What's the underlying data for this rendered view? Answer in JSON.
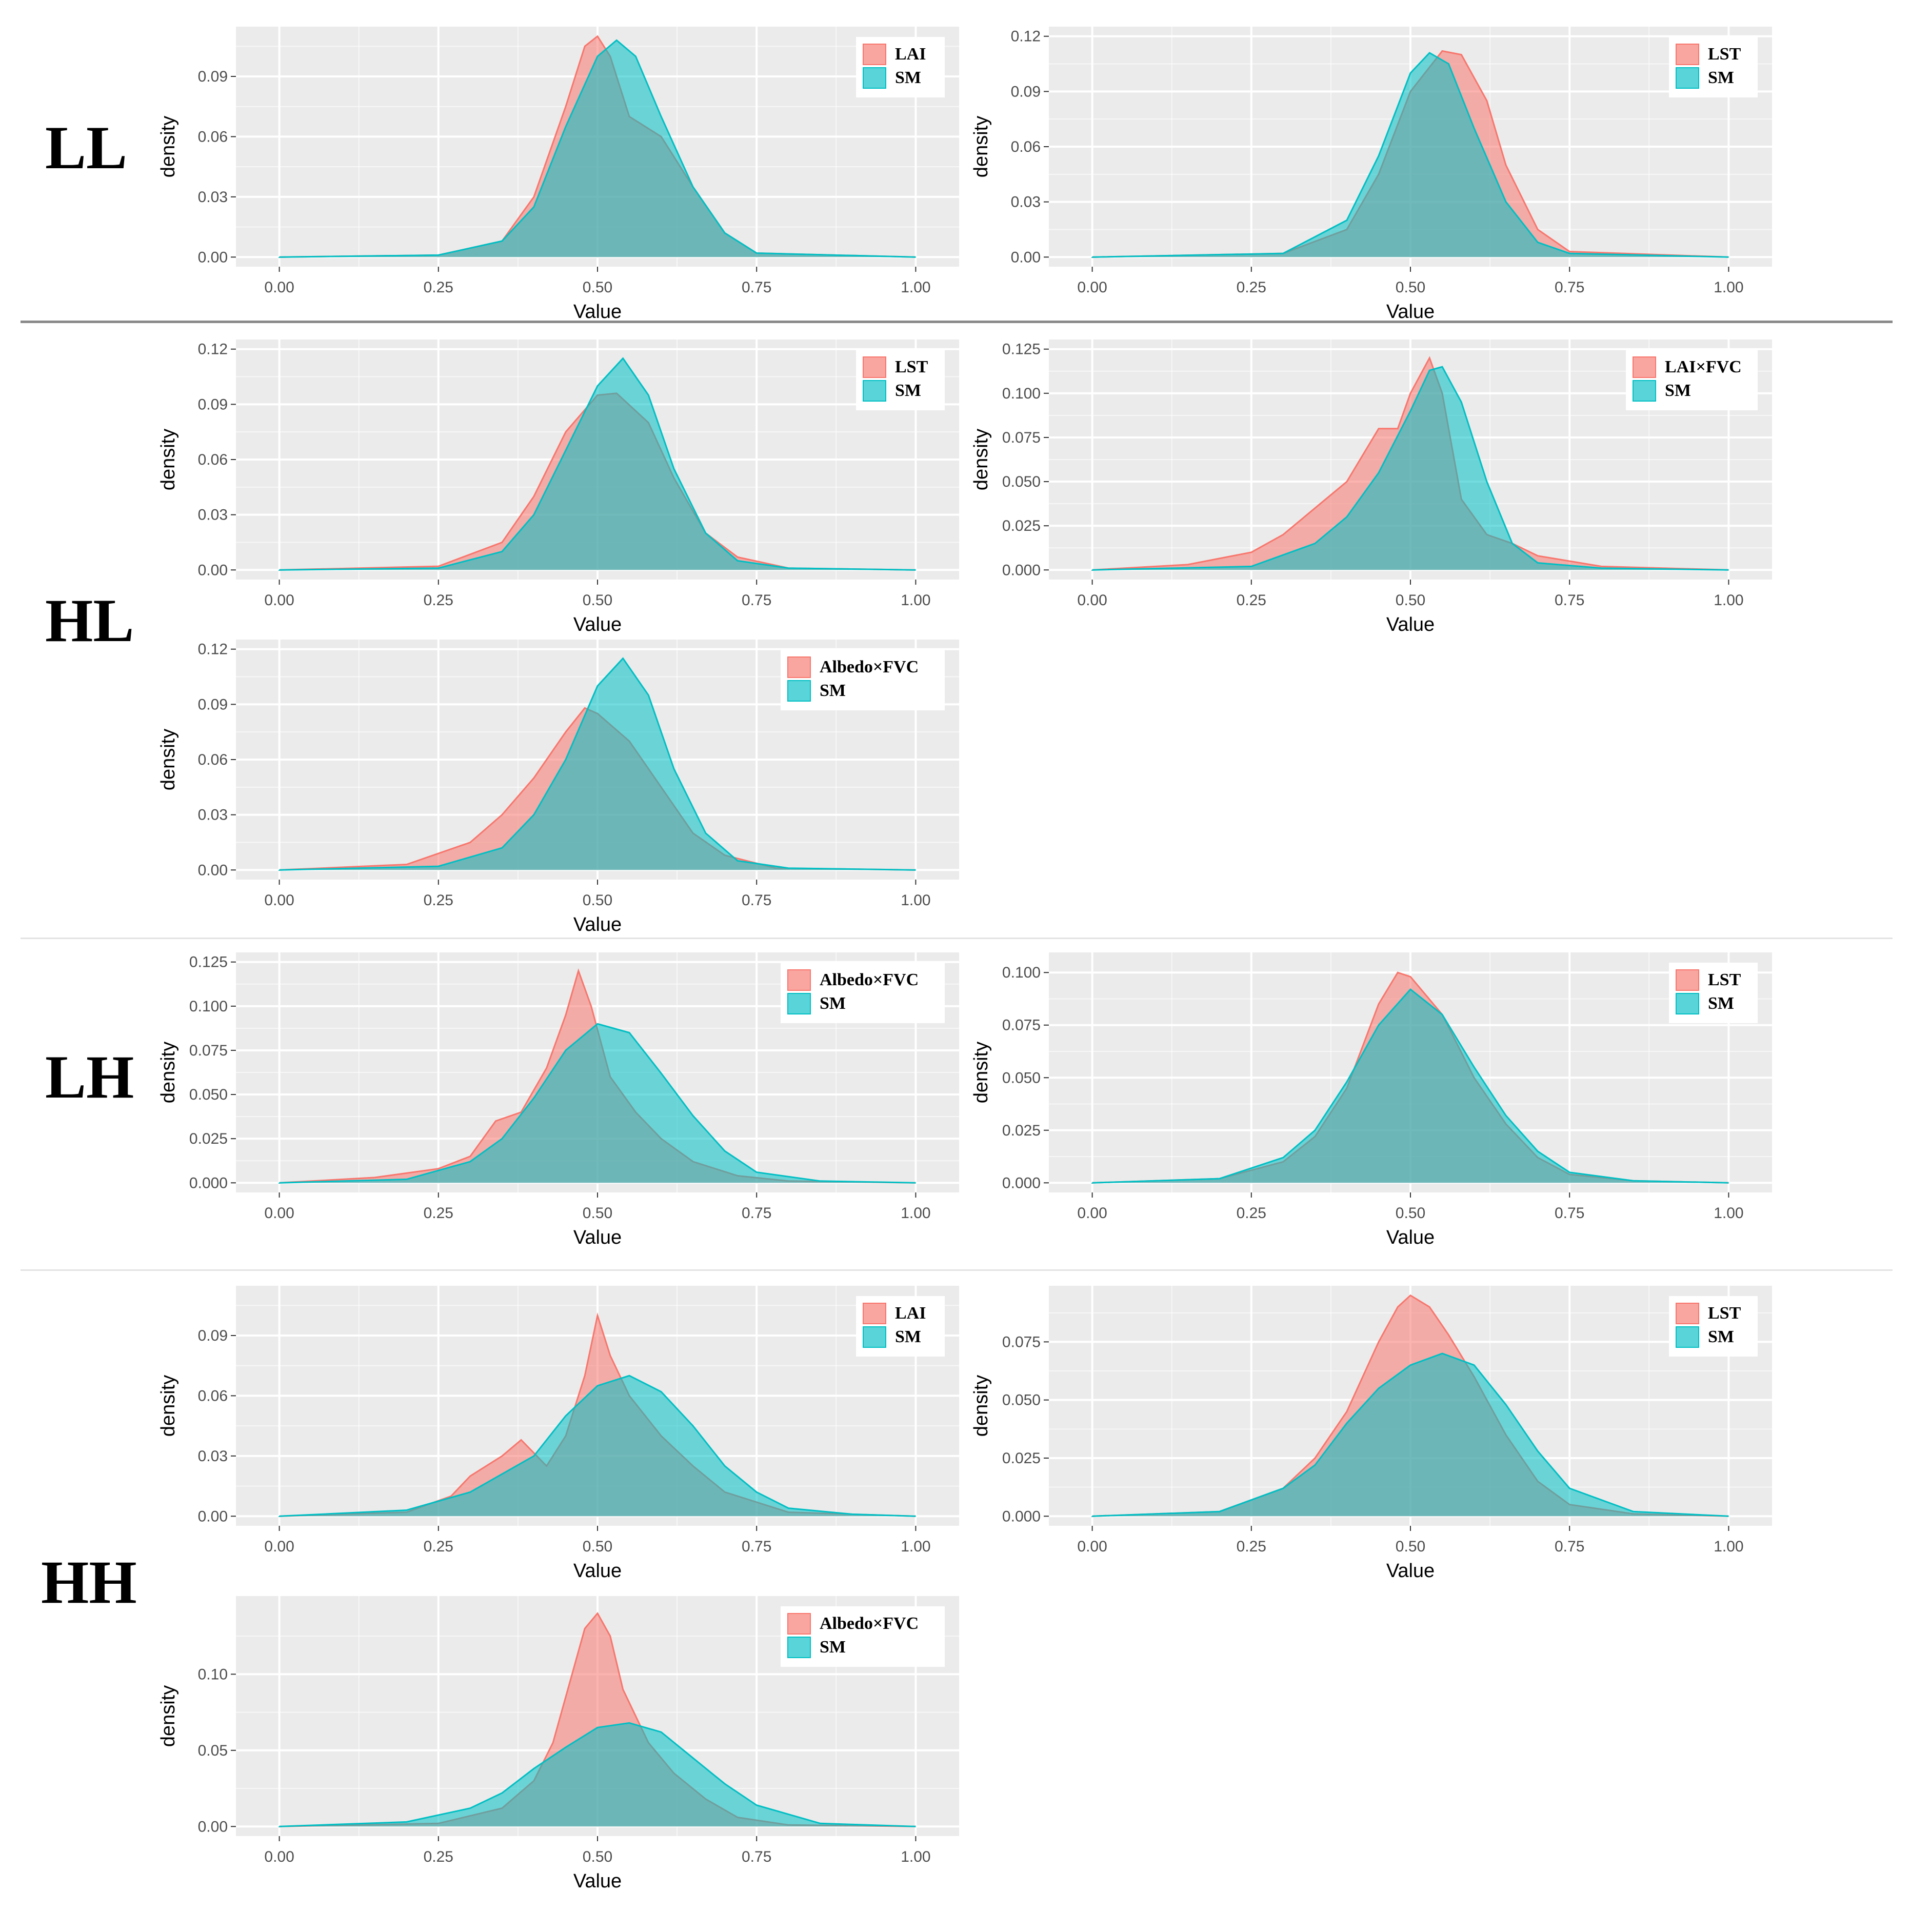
{
  "figure": {
    "group_labels": [
      "LL",
      "HL",
      "LH",
      "HH"
    ],
    "colors": {
      "first_series": "#F8766D",
      "second_series": "#00BFC4",
      "panel_bg": "#EBEBEB",
      "grid": "#FFFFFF",
      "overlap": "#55928E"
    }
  },
  "chart_data": [
    {
      "id": "LL-LAI",
      "group": "LL",
      "type": "area",
      "xlabel": "Value",
      "ylabel": "density",
      "xlim": [
        0,
        1
      ],
      "ylim": [
        0,
        0.11
      ],
      "xticks": [
        "0.00",
        "0.25",
        "0.50",
        "0.75",
        "1.00"
      ],
      "yticks": [
        "0.00",
        "0.03",
        "0.06",
        "0.09"
      ],
      "legend": [
        "LAI",
        "SM"
      ],
      "series": [
        {
          "name": "LAI",
          "x": [
            0,
            0.25,
            0.35,
            0.4,
            0.45,
            0.48,
            0.5,
            0.52,
            0.55,
            0.6,
            0.65,
            0.7,
            0.75,
            1.0
          ],
          "y": [
            0,
            0.001,
            0.008,
            0.03,
            0.075,
            0.105,
            0.11,
            0.1,
            0.07,
            0.06,
            0.035,
            0.012,
            0.002,
            0
          ]
        },
        {
          "name": "SM",
          "x": [
            0,
            0.25,
            0.35,
            0.4,
            0.45,
            0.5,
            0.53,
            0.56,
            0.6,
            0.65,
            0.7,
            0.75,
            1.0
          ],
          "y": [
            0,
            0.001,
            0.008,
            0.025,
            0.065,
            0.1,
            0.108,
            0.1,
            0.07,
            0.035,
            0.012,
            0.002,
            0
          ]
        }
      ]
    },
    {
      "id": "LL-LST",
      "group": "LL",
      "type": "area",
      "xlabel": "Value",
      "ylabel": "density",
      "xlim": [
        0,
        1
      ],
      "ylim": [
        0,
        0.12
      ],
      "xticks": [
        "0.00",
        "0.25",
        "0.50",
        "0.75",
        "1.00"
      ],
      "yticks": [
        "0.00",
        "0.03",
        "0.06",
        "0.09",
        "0.12"
      ],
      "legend": [
        "LST",
        "SM"
      ],
      "series": [
        {
          "name": "LST",
          "x": [
            0,
            0.3,
            0.4,
            0.45,
            0.5,
            0.55,
            0.58,
            0.62,
            0.65,
            0.7,
            0.75,
            1.0
          ],
          "y": [
            0,
            0.002,
            0.015,
            0.045,
            0.09,
            0.112,
            0.11,
            0.085,
            0.05,
            0.015,
            0.003,
            0
          ]
        },
        {
          "name": "SM",
          "x": [
            0,
            0.3,
            0.4,
            0.45,
            0.5,
            0.53,
            0.56,
            0.6,
            0.65,
            0.7,
            0.75,
            1.0
          ],
          "y": [
            0,
            0.002,
            0.02,
            0.055,
            0.1,
            0.111,
            0.105,
            0.07,
            0.03,
            0.008,
            0.002,
            0
          ]
        }
      ]
    },
    {
      "id": "HL-LST",
      "group": "HL",
      "type": "area",
      "xlabel": "Value",
      "ylabel": "density",
      "xlim": [
        0,
        1
      ],
      "ylim": [
        0,
        0.12
      ],
      "xticks": [
        "0.00",
        "0.25",
        "0.50",
        "0.75",
        "1.00"
      ],
      "yticks": [
        "0.00",
        "0.03",
        "0.06",
        "0.09",
        "0.12"
      ],
      "legend": [
        "LST",
        "SM"
      ],
      "series": [
        {
          "name": "LST",
          "x": [
            0,
            0.25,
            0.35,
            0.4,
            0.45,
            0.5,
            0.53,
            0.58,
            0.62,
            0.67,
            0.72,
            0.8,
            1.0
          ],
          "y": [
            0,
            0.002,
            0.015,
            0.04,
            0.075,
            0.095,
            0.096,
            0.08,
            0.05,
            0.02,
            0.007,
            0.001,
            0
          ]
        },
        {
          "name": "SM",
          "x": [
            0,
            0.25,
            0.35,
            0.4,
            0.45,
            0.5,
            0.54,
            0.58,
            0.62,
            0.67,
            0.72,
            0.8,
            1.0
          ],
          "y": [
            0,
            0.001,
            0.01,
            0.03,
            0.065,
            0.1,
            0.115,
            0.095,
            0.055,
            0.02,
            0.005,
            0.001,
            0
          ]
        }
      ]
    },
    {
      "id": "HL-LAIxFVC",
      "group": "HL",
      "type": "area",
      "xlabel": "Value",
      "ylabel": "density",
      "xlim": [
        0,
        1
      ],
      "ylim": [
        0,
        0.125
      ],
      "xticks": [
        "0.00",
        "0.25",
        "0.50",
        "0.75",
        "1.00"
      ],
      "yticks": [
        "0.000",
        "0.025",
        "0.050",
        "0.075",
        "0.100",
        "0.125"
      ],
      "legend": [
        "LAI×FVC",
        "SM"
      ],
      "series": [
        {
          "name": "LAI×FVC",
          "x": [
            0,
            0.15,
            0.25,
            0.3,
            0.35,
            0.4,
            0.45,
            0.48,
            0.5,
            0.53,
            0.55,
            0.58,
            0.62,
            0.66,
            0.7,
            0.8,
            1.0
          ],
          "y": [
            0,
            0.003,
            0.01,
            0.02,
            0.035,
            0.05,
            0.08,
            0.08,
            0.1,
            0.12,
            0.1,
            0.04,
            0.02,
            0.015,
            0.008,
            0.002,
            0
          ]
        },
        {
          "name": "SM",
          "x": [
            0,
            0.25,
            0.35,
            0.4,
            0.45,
            0.5,
            0.53,
            0.55,
            0.58,
            0.62,
            0.66,
            0.7,
            0.8,
            1.0
          ],
          "y": [
            0,
            0.002,
            0.015,
            0.03,
            0.055,
            0.09,
            0.113,
            0.115,
            0.095,
            0.05,
            0.015,
            0.004,
            0.001,
            0
          ]
        }
      ]
    },
    {
      "id": "HL-AlbedoxFVC",
      "group": "HL",
      "type": "area",
      "xlabel": "Value",
      "ylabel": "density",
      "xlim": [
        0,
        1
      ],
      "ylim": [
        0,
        0.12
      ],
      "xticks": [
        "0.00",
        "0.25",
        "0.50",
        "0.75",
        "1.00"
      ],
      "yticks": [
        "0.00",
        "0.03",
        "0.06",
        "0.09",
        "0.12"
      ],
      "legend": [
        "Albedo×FVC",
        "SM"
      ],
      "series": [
        {
          "name": "Albedo×FVC",
          "x": [
            0,
            0.2,
            0.3,
            0.35,
            0.4,
            0.45,
            0.48,
            0.5,
            0.55,
            0.6,
            0.65,
            0.7,
            0.78,
            1.0
          ],
          "y": [
            0,
            0.003,
            0.015,
            0.03,
            0.05,
            0.075,
            0.088,
            0.085,
            0.07,
            0.045,
            0.02,
            0.008,
            0.001,
            0
          ]
        },
        {
          "name": "SM",
          "x": [
            0,
            0.25,
            0.35,
            0.4,
            0.45,
            0.5,
            0.54,
            0.58,
            0.62,
            0.67,
            0.72,
            0.8,
            1.0
          ],
          "y": [
            0,
            0.002,
            0.012,
            0.03,
            0.06,
            0.1,
            0.115,
            0.095,
            0.055,
            0.02,
            0.005,
            0.001,
            0
          ]
        }
      ]
    },
    {
      "id": "LH-AlbedoxFVC",
      "group": "LH",
      "type": "area",
      "xlabel": "Value",
      "ylabel": "density",
      "xlim": [
        0,
        1
      ],
      "ylim": [
        0,
        0.125
      ],
      "xticks": [
        "0.00",
        "0.25",
        "0.50",
        "0.75",
        "1.00"
      ],
      "yticks": [
        "0.000",
        "0.025",
        "0.050",
        "0.075",
        "0.100",
        "0.125"
      ],
      "legend": [
        "Albedo×FVC",
        "SM"
      ],
      "series": [
        {
          "name": "Albedo×FVC",
          "x": [
            0,
            0.15,
            0.25,
            0.3,
            0.34,
            0.38,
            0.42,
            0.45,
            0.47,
            0.49,
            0.52,
            0.56,
            0.6,
            0.65,
            0.72,
            0.8,
            1.0
          ],
          "y": [
            0,
            0.003,
            0.008,
            0.015,
            0.035,
            0.04,
            0.065,
            0.095,
            0.12,
            0.1,
            0.06,
            0.04,
            0.025,
            0.012,
            0.004,
            0.001,
            0
          ]
        },
        {
          "name": "SM",
          "x": [
            0,
            0.2,
            0.3,
            0.35,
            0.4,
            0.45,
            0.5,
            0.55,
            0.6,
            0.65,
            0.7,
            0.75,
            0.85,
            1.0
          ],
          "y": [
            0,
            0.002,
            0.012,
            0.025,
            0.048,
            0.075,
            0.09,
            0.085,
            0.062,
            0.038,
            0.018,
            0.006,
            0.001,
            0
          ]
        }
      ]
    },
    {
      "id": "LH-LST",
      "group": "LH",
      "type": "area",
      "xlabel": "Value",
      "ylabel": "density",
      "xlim": [
        0,
        1
      ],
      "ylim": [
        0,
        0.105
      ],
      "xticks": [
        "0.00",
        "0.25",
        "0.50",
        "0.75",
        "1.00"
      ],
      "yticks": [
        "0.000",
        "0.025",
        "0.050",
        "0.075",
        "0.100"
      ],
      "legend": [
        "LST",
        "SM"
      ],
      "series": [
        {
          "name": "LST",
          "x": [
            0,
            0.2,
            0.3,
            0.35,
            0.4,
            0.45,
            0.48,
            0.5,
            0.55,
            0.6,
            0.65,
            0.7,
            0.75,
            0.85,
            1.0
          ],
          "y": [
            0,
            0.002,
            0.01,
            0.022,
            0.045,
            0.085,
            0.1,
            0.098,
            0.08,
            0.05,
            0.028,
            0.012,
            0.004,
            0.001,
            0
          ]
        },
        {
          "name": "SM",
          "x": [
            0,
            0.2,
            0.3,
            0.35,
            0.4,
            0.45,
            0.5,
            0.55,
            0.6,
            0.65,
            0.7,
            0.75,
            0.85,
            1.0
          ],
          "y": [
            0,
            0.002,
            0.012,
            0.025,
            0.048,
            0.075,
            0.092,
            0.08,
            0.055,
            0.032,
            0.015,
            0.005,
            0.001,
            0
          ]
        }
      ]
    },
    {
      "id": "HH-LAI",
      "group": "HH",
      "type": "area",
      "xlabel": "Value",
      "ylabel": "density",
      "xlim": [
        0,
        1
      ],
      "ylim": [
        0,
        0.11
      ],
      "xticks": [
        "0.00",
        "0.25",
        "0.50",
        "0.75",
        "1.00"
      ],
      "yticks": [
        "0.00",
        "0.03",
        "0.06",
        "0.09"
      ],
      "legend": [
        "LAI",
        "SM"
      ],
      "series": [
        {
          "name": "LAI",
          "x": [
            0,
            0.2,
            0.27,
            0.3,
            0.35,
            0.38,
            0.42,
            0.45,
            0.48,
            0.5,
            0.52,
            0.55,
            0.6,
            0.65,
            0.7,
            0.8,
            1.0
          ],
          "y": [
            0,
            0.002,
            0.01,
            0.02,
            0.03,
            0.038,
            0.025,
            0.04,
            0.07,
            0.1,
            0.08,
            0.06,
            0.04,
            0.025,
            0.012,
            0.002,
            0
          ]
        },
        {
          "name": "SM",
          "x": [
            0,
            0.2,
            0.3,
            0.4,
            0.45,
            0.5,
            0.55,
            0.6,
            0.65,
            0.7,
            0.75,
            0.8,
            0.9,
            1.0
          ],
          "y": [
            0,
            0.003,
            0.012,
            0.03,
            0.05,
            0.065,
            0.07,
            0.062,
            0.045,
            0.025,
            0.012,
            0.004,
            0.001,
            0
          ]
        }
      ]
    },
    {
      "id": "HH-LST",
      "group": "HH",
      "type": "area",
      "xlabel": "Value",
      "ylabel": "density",
      "xlim": [
        0,
        1
      ],
      "ylim": [
        0,
        0.095
      ],
      "xticks": [
        "0.00",
        "0.25",
        "0.50",
        "0.75",
        "1.00"
      ],
      "yticks": [
        "0.000",
        "0.025",
        "0.050",
        "0.075"
      ],
      "legend": [
        "LST",
        "SM"
      ],
      "series": [
        {
          "name": "LST",
          "x": [
            0,
            0.2,
            0.3,
            0.35,
            0.4,
            0.45,
            0.48,
            0.5,
            0.53,
            0.56,
            0.6,
            0.65,
            0.7,
            0.75,
            0.85,
            1.0
          ],
          "y": [
            0,
            0.002,
            0.012,
            0.025,
            0.045,
            0.075,
            0.09,
            0.095,
            0.09,
            0.078,
            0.06,
            0.035,
            0.015,
            0.005,
            0.001,
            0
          ]
        },
        {
          "name": "SM",
          "x": [
            0,
            0.2,
            0.3,
            0.35,
            0.4,
            0.45,
            0.5,
            0.55,
            0.6,
            0.65,
            0.7,
            0.75,
            0.85,
            1.0
          ],
          "y": [
            0,
            0.002,
            0.012,
            0.022,
            0.04,
            0.055,
            0.065,
            0.07,
            0.065,
            0.048,
            0.028,
            0.012,
            0.002,
            0
          ]
        }
      ]
    },
    {
      "id": "HH-AlbedoxFVC",
      "group": "HH",
      "type": "area",
      "xlabel": "Value",
      "ylabel": "density",
      "xlim": [
        0,
        1
      ],
      "ylim": [
        0,
        0.145
      ],
      "xticks": [
        "0.00",
        "0.25",
        "0.50",
        "0.75",
        "1.00"
      ],
      "yticks": [
        "0.00",
        "0.05",
        "0.10"
      ],
      "legend": [
        "Albedo×FVC",
        "SM"
      ],
      "series": [
        {
          "name": "Albedo×FVC",
          "x": [
            0,
            0.25,
            0.35,
            0.4,
            0.43,
            0.46,
            0.48,
            0.5,
            0.52,
            0.54,
            0.58,
            0.62,
            0.67,
            0.72,
            0.8,
            1.0
          ],
          "y": [
            0,
            0.002,
            0.012,
            0.03,
            0.055,
            0.1,
            0.13,
            0.14,
            0.125,
            0.09,
            0.055,
            0.035,
            0.018,
            0.006,
            0.001,
            0
          ]
        },
        {
          "name": "SM",
          "x": [
            0,
            0.2,
            0.3,
            0.35,
            0.4,
            0.45,
            0.5,
            0.55,
            0.6,
            0.65,
            0.7,
            0.75,
            0.85,
            1.0
          ],
          "y": [
            0,
            0.003,
            0.012,
            0.022,
            0.038,
            0.052,
            0.065,
            0.068,
            0.062,
            0.045,
            0.028,
            0.014,
            0.002,
            0
          ]
        }
      ]
    }
  ]
}
